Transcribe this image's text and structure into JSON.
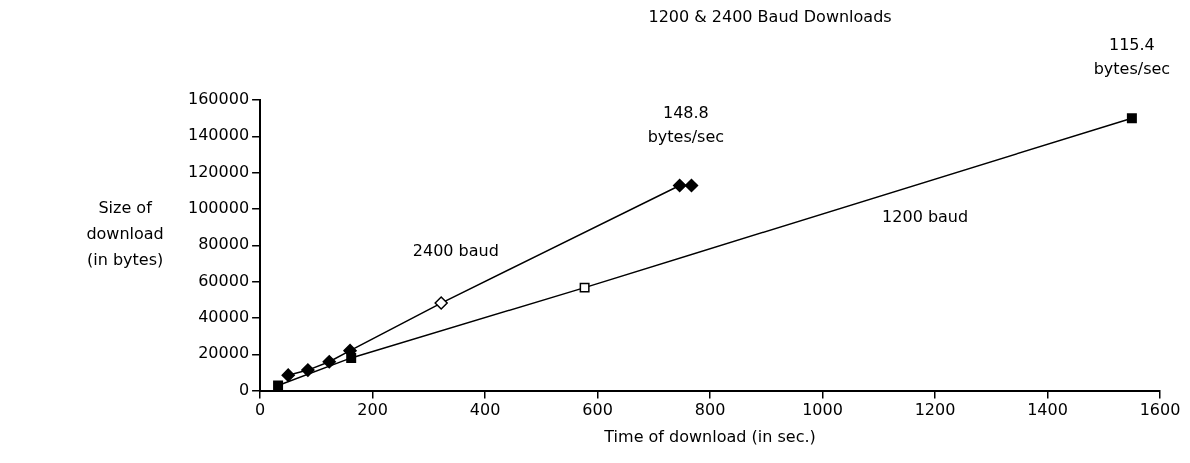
{
  "chart_data": {
    "type": "line",
    "title": "1200 & 2400 Baud Downloads",
    "xlabel": "Time of download (in sec.)",
    "ylabel": "Size of\ndownload\n(in bytes)",
    "xlim": [
      0,
      1600
    ],
    "xticks": [
      0,
      200,
      400,
      600,
      800,
      1000,
      1200,
      1400,
      1600
    ],
    "ylim": [
      0,
      160000
    ],
    "yticks": [
      0,
      20000,
      40000,
      60000,
      80000,
      100000,
      120000,
      140000,
      160000
    ],
    "grid": false,
    "legend": false,
    "series": [
      {
        "name": "2400 baud",
        "color": "#000000",
        "marker": "diamond",
        "x": [
          50,
          85,
          123,
          160,
          322,
          746,
          767
        ],
        "values": [
          8500,
          11300,
          15900,
          22000,
          48200,
          112900,
          112900
        ],
        "colors": [
          "#000000",
          "#000000",
          "#000000",
          "#000000",
          "#ffffff",
          "#000000",
          "#000000"
        ]
      },
      {
        "name": "1200 baud",
        "color": "#000000",
        "marker": "square",
        "x": [
          32,
          162,
          577,
          1550
        ],
        "values": [
          2800,
          18000,
          56700,
          150000
        ],
        "colors": [
          "#000000",
          "#000000",
          "#ffffff",
          "#000000"
        ]
      }
    ],
    "annotations": [
      {
        "text": "148.8\nbytes/sec",
        "x": 757,
        "y": 112900
      },
      {
        "text": "115.4\nbytes/sec",
        "x": 1550,
        "y": 150000
      }
    ]
  }
}
